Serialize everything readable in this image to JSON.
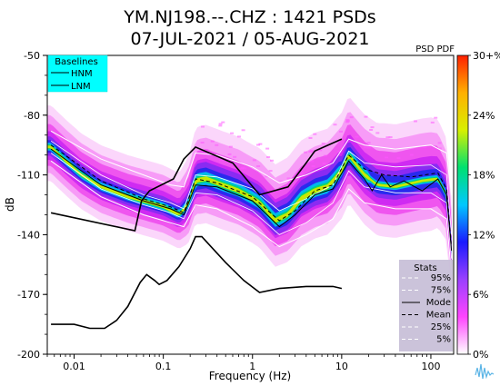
{
  "title_line1": "YM.NJ198.--.CHZ : 1421 PSDs",
  "title_line2": "07-JUL-2021 / 05-AUG-2021",
  "psd_pdf_label": "PSD PDF",
  "chart_data": {
    "type": "heatmap",
    "xlabel": "Frequency (Hz)",
    "ylabel": "dB",
    "x_scale": "log",
    "xlim": [
      0.005,
      180
    ],
    "ylim": [
      -200,
      -50
    ],
    "xticks": [
      {
        "value": 0.01,
        "label": "0.01"
      },
      {
        "value": 0.1,
        "label": "0.1"
      },
      {
        "value": 1,
        "label": "1"
      },
      {
        "value": 10,
        "label": "10"
      },
      {
        "value": 100,
        "label": "100"
      }
    ],
    "yticks": [
      {
        "value": -50,
        "label": "-50"
      },
      {
        "value": -80,
        "label": "-80"
      },
      {
        "value": -110,
        "label": "-110"
      },
      {
        "value": -140,
        "label": "-140"
      },
      {
        "value": -170,
        "label": "-170"
      },
      {
        "value": -200,
        "label": "-200"
      }
    ],
    "colorbar": {
      "ticks": [
        {
          "value": 0,
          "label": "0%"
        },
        {
          "value": 6,
          "label": "6%"
        },
        {
          "value": 12,
          "label": "12%"
        },
        {
          "value": 18,
          "label": "18%"
        },
        {
          "value": 24,
          "label": "24%"
        },
        {
          "value": 30,
          "label": "30+%"
        }
      ],
      "colors": [
        "#ffffff",
        "#ff44ff",
        "#9a40ff",
        "#1a1aff",
        "#00c8ff",
        "#00e070",
        "#d8f000",
        "#ffb000",
        "#ff2000"
      ]
    },
    "baselines": {
      "title": "Baselines",
      "entries": [
        "HNM",
        "LNM"
      ],
      "hnm": [
        [
          0.0055,
          -129
        ],
        [
          0.048,
          -138
        ],
        [
          0.057,
          -123
        ],
        [
          0.07,
          -118
        ],
        [
          0.13,
          -112
        ],
        [
          0.17,
          -102
        ],
        [
          0.23,
          -96
        ],
        [
          0.6,
          -104
        ],
        [
          1.2,
          -120
        ],
        [
          2.5,
          -116
        ],
        [
          4.0,
          -104
        ],
        [
          5.0,
          -98
        ],
        [
          10,
          -92
        ]
      ],
      "lnm": [
        [
          0.0055,
          -185
        ],
        [
          0.01,
          -185
        ],
        [
          0.015,
          -187
        ],
        [
          0.022,
          -187
        ],
        [
          0.03,
          -183
        ],
        [
          0.04,
          -176
        ],
        [
          0.055,
          -164
        ],
        [
          0.065,
          -160
        ],
        [
          0.08,
          -163
        ],
        [
          0.09,
          -165
        ],
        [
          0.11,
          -163
        ],
        [
          0.15,
          -156
        ],
        [
          0.2,
          -147
        ],
        [
          0.23,
          -141
        ],
        [
          0.27,
          -141
        ],
        [
          0.5,
          -154
        ],
        [
          0.8,
          -163
        ],
        [
          1.2,
          -169
        ],
        [
          2.0,
          -167
        ],
        [
          4.0,
          -166
        ],
        [
          8.0,
          -166
        ],
        [
          10,
          -167
        ]
      ]
    },
    "stats": {
      "title": "Stats",
      "entries": [
        {
          "name": "95%",
          "color": "#ffffff",
          "dash": "4,3"
        },
        {
          "name": "75%",
          "color": "#ffffff",
          "dash": "4,3"
        },
        {
          "name": "Mode",
          "color": "#000000",
          "dash": ""
        },
        {
          "name": "Mean",
          "color": "#000000",
          "dash": "4,3"
        },
        {
          "name": "25%",
          "color": "#ffffff",
          "dash": "4,3"
        },
        {
          "name": "5%",
          "color": "#ffffff",
          "dash": "4,3"
        }
      ]
    },
    "psd_median": [
      [
        0.0055,
        -96
      ],
      [
        0.008,
        -103
      ],
      [
        0.012,
        -110
      ],
      [
        0.02,
        -116
      ],
      [
        0.04,
        -121
      ],
      [
        0.07,
        -124
      ],
      [
        0.1,
        -126
      ],
      [
        0.15,
        -130
      ],
      [
        0.19,
        -125
      ],
      [
        0.23,
        -113
      ],
      [
        0.3,
        -112
      ],
      [
        0.45,
        -115
      ],
      [
        0.7,
        -118
      ],
      [
        1.2,
        -124
      ],
      [
        1.8,
        -133
      ],
      [
        2.5,
        -130
      ],
      [
        3.5,
        -122
      ],
      [
        5,
        -118
      ],
      [
        7,
        -116
      ],
      [
        10,
        -108
      ],
      [
        12,
        -100
      ],
      [
        14,
        -104
      ],
      [
        18,
        -110
      ],
      [
        25,
        -115
      ],
      [
        40,
        -116
      ],
      [
        80,
        -113
      ],
      [
        120,
        -112
      ],
      [
        150,
        -120
      ],
      [
        170,
        -148
      ]
    ],
    "band_widths": [
      [
        0.0055,
        20
      ],
      [
        0.05,
        20
      ],
      [
        0.15,
        20
      ],
      [
        0.25,
        26
      ],
      [
        1,
        26
      ],
      [
        3,
        28
      ],
      [
        10,
        28
      ],
      [
        30,
        30
      ],
      [
        100,
        30
      ],
      [
        170,
        26
      ]
    ],
    "mode": [
      [
        0.0055,
        -97
      ],
      [
        0.02,
        -115
      ],
      [
        0.06,
        -123
      ],
      [
        0.12,
        -127
      ],
      [
        0.17,
        -130
      ],
      [
        0.23,
        -115
      ],
      [
        0.4,
        -116
      ],
      [
        1,
        -123
      ],
      [
        2,
        -136
      ],
      [
        3,
        -130
      ],
      [
        5,
        -120
      ],
      [
        8,
        -117
      ],
      [
        12,
        -103
      ],
      [
        18,
        -112
      ],
      [
        22,
        -118
      ],
      [
        28,
        -110
      ],
      [
        35,
        -116
      ],
      [
        50,
        -113
      ],
      [
        80,
        -118
      ],
      [
        120,
        -112
      ],
      [
        150,
        -120
      ],
      [
        170,
        -148
      ]
    ],
    "mean": [
      [
        0.0055,
        -95
      ],
      [
        0.02,
        -113
      ],
      [
        0.06,
        -122
      ],
      [
        0.12,
        -126
      ],
      [
        0.17,
        -129
      ],
      [
        0.23,
        -112
      ],
      [
        0.4,
        -114
      ],
      [
        1,
        -121
      ],
      [
        2,
        -133
      ],
      [
        3,
        -128
      ],
      [
        5,
        -118
      ],
      [
        8,
        -115
      ],
      [
        12,
        -100
      ],
      [
        18,
        -107
      ],
      [
        30,
        -110
      ],
      [
        60,
        -111
      ],
      [
        120,
        -109
      ],
      [
        150,
        -117
      ],
      [
        170,
        -146
      ]
    ],
    "p95": [
      [
        0.0055,
        -88
      ],
      [
        0.02,
        -102
      ],
      [
        0.06,
        -110
      ],
      [
        0.12,
        -115
      ],
      [
        0.17,
        -116
      ],
      [
        0.23,
        -99
      ],
      [
        0.4,
        -100
      ],
      [
        1,
        -106
      ],
      [
        2,
        -114
      ],
      [
        4,
        -110
      ],
      [
        8,
        -104
      ],
      [
        12,
        -92
      ],
      [
        18,
        -95
      ],
      [
        40,
        -97
      ],
      [
        100,
        -95
      ],
      [
        150,
        -99
      ],
      [
        170,
        -120
      ]
    ],
    "p75": [
      [
        0.0055,
        -93
      ],
      [
        0.02,
        -110
      ],
      [
        0.06,
        -120
      ],
      [
        0.12,
        -124
      ],
      [
        0.17,
        -127
      ],
      [
        0.23,
        -110
      ],
      [
        0.4,
        -111
      ],
      [
        1,
        -117
      ],
      [
        2,
        -128
      ],
      [
        4,
        -122
      ],
      [
        8,
        -115
      ],
      [
        12,
        -98
      ],
      [
        18,
        -104
      ],
      [
        40,
        -106
      ],
      [
        100,
        -105
      ],
      [
        150,
        -110
      ],
      [
        170,
        -140
      ]
    ],
    "p25": [
      [
        0.0055,
        -99
      ],
      [
        0.02,
        -117
      ],
      [
        0.06,
        -125
      ],
      [
        0.12,
        -129
      ],
      [
        0.17,
        -132
      ],
      [
        0.23,
        -119
      ],
      [
        0.4,
        -120
      ],
      [
        1,
        -128
      ],
      [
        2,
        -140
      ],
      [
        4,
        -134
      ],
      [
        8,
        -124
      ],
      [
        12,
        -108
      ],
      [
        18,
        -116
      ],
      [
        40,
        -119
      ],
      [
        100,
        -119
      ],
      [
        150,
        -124
      ],
      [
        170,
        -152
      ]
    ],
    "p5": [
      [
        0.0055,
        -103
      ],
      [
        0.02,
        -121
      ],
      [
        0.06,
        -130
      ],
      [
        0.12,
        -134
      ],
      [
        0.17,
        -136
      ],
      [
        0.23,
        -125
      ],
      [
        0.4,
        -127
      ],
      [
        1,
        -136
      ],
      [
        2,
        -146
      ],
      [
        4,
        -140
      ],
      [
        8,
        -132
      ],
      [
        12,
        -117
      ],
      [
        18,
        -124
      ],
      [
        40,
        -127
      ],
      [
        100,
        -127
      ],
      [
        150,
        -132
      ],
      [
        170,
        -160
      ]
    ]
  }
}
